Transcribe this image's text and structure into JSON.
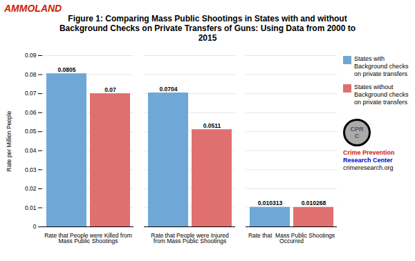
{
  "chart_data": {
    "type": "bar",
    "title": "Figure 1: Comparing Mass Public Shootings in States with and without\nBackground Checks on Private Transfers of Guns: Using Data from 2000 to\n2015",
    "ylabel": "Rate per Million People",
    "categories": [
      "Rate that People were Killed from\nMass Public Shootings",
      "Rate that People were Injured\nfrom Mass Public Shootings",
      "Rate that  Mass Public Shootings\nOccurred"
    ],
    "series": [
      {
        "name": "States with\nBackground checks\non private transfers",
        "color": "#6fa8d6",
        "values": [
          0.0805,
          0.0704,
          0.010313
        ]
      },
      {
        "name": "States without\nBackground checks\non private transfers",
        "color": "#e07070",
        "values": [
          0.07,
          0.0511,
          0.010268
        ]
      }
    ],
    "ylim": [
      0,
      0.09
    ],
    "yticks": [
      0,
      0.01,
      0.02,
      0.03,
      0.04,
      0.05,
      0.06,
      0.07,
      0.08,
      0.09
    ],
    "grid": true,
    "legend": "upper right",
    "data_labels": true,
    "annotations": [
      "AMMOLAND",
      "CPR\nC",
      "Crime Prevention",
      "Research Center",
      "crimeresearch.org"
    ]
  }
}
